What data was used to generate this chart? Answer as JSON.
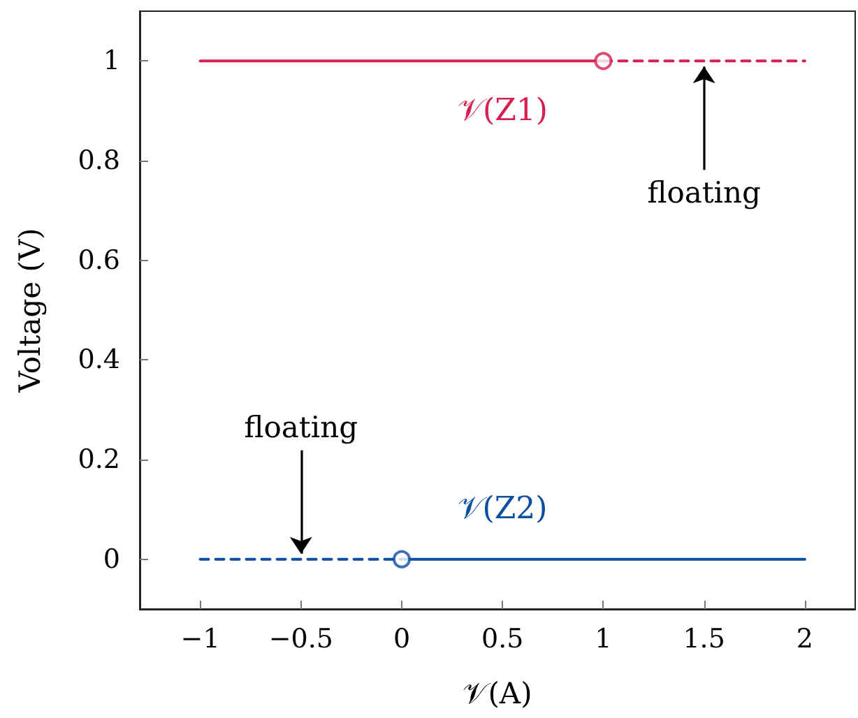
{
  "chart_data": {
    "type": "line",
    "xlabel": "𝒱(A)",
    "ylabel": "Voltage (V)",
    "xlim": [
      -1.3,
      2.25
    ],
    "ylim": [
      -0.1,
      1.1
    ],
    "xticks": [
      {
        "value": -1,
        "label": "−1"
      },
      {
        "value": -0.5,
        "label": "−0.5"
      },
      0,
      0.5,
      1,
      1.5,
      2
    ],
    "yticks": [
      0,
      0.2,
      0.4,
      0.6,
      0.8,
      1
    ],
    "grid": false,
    "legend": false,
    "series": [
      {
        "name": "𝒱(Z1)",
        "color": "#d62050",
        "x": [
          -1,
          1
        ],
        "values": [
          1,
          1
        ],
        "line_style": "solid",
        "marker": "none"
      },
      {
        "color": "#d62050",
        "x": [
          1,
          2
        ],
        "values": [
          1,
          1
        ],
        "line_style": "dashed",
        "marker": "none"
      },
      {
        "type": "scatter",
        "color": "#d62050",
        "x": [
          1
        ],
        "values": [
          1
        ],
        "marker": "circle"
      },
      {
        "color": "#0b4ea2",
        "x": [
          -1,
          0
        ],
        "values": [
          0,
          0
        ],
        "line_style": "dashed",
        "marker": "none"
      },
      {
        "name": "𝒱(Z2)",
        "color": "#0b4ea2",
        "x": [
          0,
          2
        ],
        "values": [
          0,
          0
        ],
        "line_style": "solid",
        "marker": "none"
      },
      {
        "type": "scatter",
        "color": "#0b4ea2",
        "x": [
          0
        ],
        "values": [
          0
        ],
        "marker": "circle"
      }
    ],
    "annotations": [
      {
        "text": "floating",
        "x": 1.5,
        "y": 1
      },
      {
        "text": "floating",
        "x": -0.5,
        "y": 0
      }
    ]
  }
}
